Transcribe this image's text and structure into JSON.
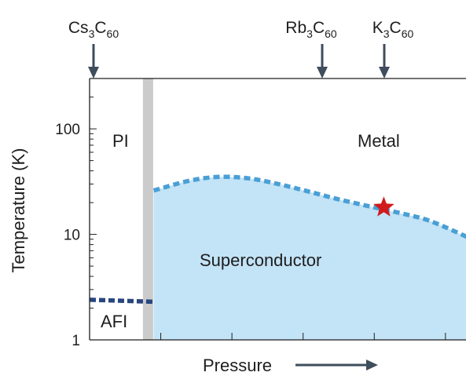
{
  "chart_data": {
    "type": "area",
    "title": "",
    "xlabel": "Pressure",
    "ylabel": "Temperature (K)",
    "y_scale": "log",
    "ylim": [
      1,
      300
    ],
    "xlim": [
      0,
      1
    ],
    "y_ticks": [
      "1",
      "10",
      "100"
    ],
    "x_ticks_labeled": false,
    "grid": false,
    "compounds": [
      {
        "base": "Cs",
        "sub1": "3",
        "mid": "C",
        "sub2": "60",
        "x": 0.0
      },
      {
        "base": "Rb",
        "sub1": "3",
        "mid": "C",
        "sub2": "60",
        "x": 0.62
      },
      {
        "base": "K",
        "sub1": "3",
        "mid": "C",
        "sub2": "60",
        "x": 0.78
      }
    ],
    "regions": {
      "pi": "PI",
      "metal": "Metal",
      "superconductor": "Superconductor",
      "afi": "AFI"
    },
    "tc_curve": {
      "name": "",
      "x": [
        0.17,
        0.26,
        0.34,
        0.42,
        0.5,
        0.58,
        0.66,
        0.74,
        0.82,
        0.9,
        1.0
      ],
      "y": [
        26,
        32,
        35,
        34,
        30,
        25.5,
        21.5,
        18.5,
        16,
        13.5,
        9.5
      ]
    },
    "afi_line": {
      "x": [
        0.0,
        0.17
      ],
      "y": [
        2.4,
        2.3
      ]
    },
    "boundary_x": 0.155,
    "marker": {
      "x": 0.78,
      "y": 18,
      "shape": "star"
    },
    "colors": {
      "superconductor_fill": "#c3e3f6",
      "tc_line": "#4a9fd5",
      "afi_line": "#28457f",
      "boundary": "#cbcbcb",
      "star": "#d11a1a",
      "arrow": "#3f4d5c",
      "axis": "#1e1e1e"
    }
  }
}
